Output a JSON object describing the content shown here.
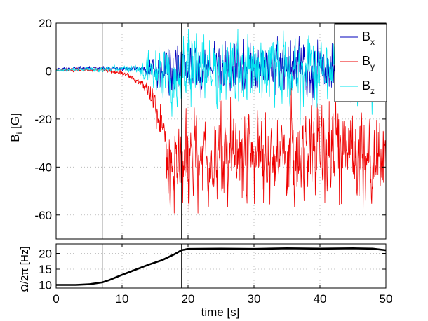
{
  "chart_data": [
    {
      "type": "line",
      "panel": "top",
      "ylabel": "B",
      "ylabel_sub": "i",
      "ylabel_unit": " [G]",
      "xlim": [
        0,
        50
      ],
      "ylim": [
        -70,
        20
      ],
      "xticks": [
        0,
        10,
        20,
        30,
        40,
        50
      ],
      "yticks": [
        20,
        0,
        -20,
        -40,
        -60
      ],
      "vlines": [
        7,
        19
      ],
      "grid": true,
      "legend_position": "top-right",
      "series": [
        {
          "name": "Bx",
          "label": "B",
          "sub": "x",
          "color": "#0000bb",
          "seed": 11,
          "base": [
            [
              0,
              1
            ],
            [
              15,
              1
            ],
            [
              50,
              1
            ]
          ],
          "noise": [
            [
              0,
              0.3
            ],
            [
              13,
              0.5
            ],
            [
              14.5,
              2
            ],
            [
              16,
              5
            ],
            [
              50,
              5
            ]
          ]
        },
        {
          "name": "By",
          "label": "B",
          "sub": "y",
          "color": "#ee0000",
          "seed": 23,
          "base": [
            [
              0,
              0.5
            ],
            [
              7,
              0.5
            ],
            [
              10,
              -1
            ],
            [
              12,
              -3.5
            ],
            [
              13.5,
              -6
            ],
            [
              15,
              -14
            ],
            [
              16.5,
              -29
            ],
            [
              18,
              -38
            ],
            [
              20,
              -38
            ],
            [
              30,
              -34
            ],
            [
              40,
              -33
            ],
            [
              50,
              -36
            ]
          ],
          "noise": [
            [
              0,
              0.3
            ],
            [
              12,
              0.5
            ],
            [
              14,
              1.5
            ],
            [
              16,
              5
            ],
            [
              17.5,
              9
            ],
            [
              50,
              9
            ]
          ]
        },
        {
          "name": "Bz",
          "label": "B",
          "sub": "z",
          "color": "#00e5ee",
          "seed": 37,
          "base": [
            [
              0,
              0.5
            ],
            [
              15,
              1
            ],
            [
              50,
              1
            ]
          ],
          "noise": [
            [
              0,
              0.3
            ],
            [
              12,
              0.6
            ],
            [
              15,
              5
            ],
            [
              16,
              7
            ],
            [
              50,
              6
            ]
          ]
        }
      ]
    },
    {
      "type": "line",
      "panel": "bottom",
      "xlabel": "time [s]",
      "ylabel": "Ω/2π [Hz]",
      "xlim": [
        0,
        50
      ],
      "ylim": [
        9,
        23
      ],
      "xticks": [
        0,
        10,
        20,
        30,
        40,
        50
      ],
      "yticks": [
        20,
        15,
        10
      ],
      "vlines": [
        7,
        19
      ],
      "grid": true,
      "series": [
        {
          "name": "rotation-rate",
          "color": "#000000",
          "points": [
            [
              0,
              10
            ],
            [
              3,
              10
            ],
            [
              5,
              10.2
            ],
            [
              7,
              10.8
            ],
            [
              8,
              11.5
            ],
            [
              10,
              13.2
            ],
            [
              12,
              14.8
            ],
            [
              14,
              16.4
            ],
            [
              16,
              17.8
            ],
            [
              18,
              19.8
            ],
            [
              19,
              21
            ],
            [
              20,
              21.4
            ],
            [
              25,
              21.5
            ],
            [
              30,
              21.4
            ],
            [
              35,
              21.6
            ],
            [
              40,
              21.5
            ],
            [
              45,
              21.6
            ],
            [
              48,
              21.5
            ],
            [
              50,
              21
            ]
          ]
        }
      ]
    }
  ]
}
